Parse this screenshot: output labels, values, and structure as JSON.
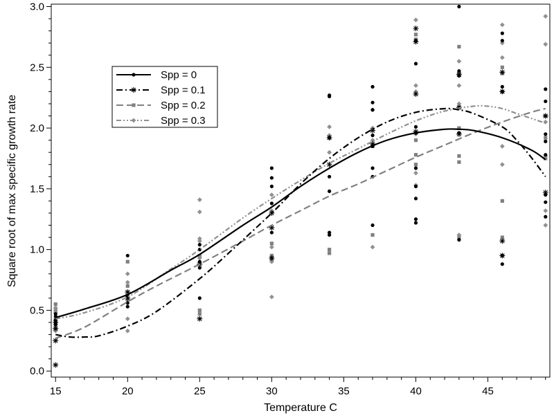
{
  "chart_data": {
    "type": "scatter",
    "title": "",
    "xlabel": "Temperature C",
    "ylabel": "Square root of max specific growth rate",
    "xlim": [
      14.7,
      49.3
    ],
    "ylim": [
      -0.05,
      3.02
    ],
    "xticks": [
      15,
      20,
      25,
      30,
      35,
      40,
      45
    ],
    "yticks": [
      0.0,
      0.5,
      1.0,
      1.5,
      2.0,
      2.5,
      3.0
    ],
    "ytick_labels": [
      "0.0",
      "0.5",
      "1.0",
      "1.5",
      "2.0",
      "2.5",
      "3.0"
    ],
    "grid": false,
    "legend_position": "upper-left",
    "series": [
      {
        "name": "Spp = 0",
        "color": "#000000",
        "marker": "dot",
        "line_style": "solid",
        "points": [
          [
            15,
            0.4
          ],
          [
            15,
            0.42
          ],
          [
            15,
            0.45
          ],
          [
            15,
            0.47
          ],
          [
            15,
            0.38
          ],
          [
            20,
            0.95
          ],
          [
            20,
            0.62
          ],
          [
            20,
            0.56
          ],
          [
            20,
            0.53
          ],
          [
            25,
            1.04
          ],
          [
            25,
            1.0
          ],
          [
            25,
            0.9
          ],
          [
            25,
            0.85
          ],
          [
            25,
            0.6
          ],
          [
            30,
            1.67
          ],
          [
            30,
            1.59
          ],
          [
            30,
            1.52
          ],
          [
            30,
            1.38
          ],
          [
            30,
            1.14
          ],
          [
            34,
            2.27
          ],
          [
            34,
            2.26
          ],
          [
            34,
            1.92
          ],
          [
            34,
            1.6
          ],
          [
            34,
            1.48
          ],
          [
            34,
            1.14
          ],
          [
            34,
            1.12
          ],
          [
            37,
            2.34
          ],
          [
            37,
            2.21
          ],
          [
            37,
            2.15
          ],
          [
            37,
            1.94
          ],
          [
            37,
            1.85
          ],
          [
            37,
            1.67
          ],
          [
            37,
            1.6
          ],
          [
            37,
            1.2
          ],
          [
            40,
            2.72
          ],
          [
            40,
            2.53
          ],
          [
            40,
            2.01
          ],
          [
            40,
            1.96
          ],
          [
            40,
            1.67
          ],
          [
            40,
            1.52
          ],
          [
            40,
            1.42
          ],
          [
            40,
            1.25
          ],
          [
            40,
            1.22
          ],
          [
            43,
            3.0
          ],
          [
            43,
            2.47
          ],
          [
            43,
            2.43
          ],
          [
            43,
            2.17
          ],
          [
            43,
            1.96
          ],
          [
            43,
            1.08
          ],
          [
            46,
            2.78
          ],
          [
            46,
            2.72
          ],
          [
            46,
            2.34
          ],
          [
            46,
            2.3
          ],
          [
            46,
            0.95
          ],
          [
            46,
            0.88
          ],
          [
            49,
            2.32
          ],
          [
            49,
            2.22
          ],
          [
            49,
            1.95
          ],
          [
            49,
            1.89
          ],
          [
            49,
            1.78
          ],
          [
            49,
            1.45
          ],
          [
            49,
            1.39
          ],
          [
            49,
            1.27
          ]
        ],
        "curve": [
          [
            15,
            0.44
          ],
          [
            17,
            0.51
          ],
          [
            20,
            0.63
          ],
          [
            23,
            0.83
          ],
          [
            25,
            0.96
          ],
          [
            28,
            1.2
          ],
          [
            30,
            1.35
          ],
          [
            32,
            1.52
          ],
          [
            34,
            1.67
          ],
          [
            36,
            1.8
          ],
          [
            38,
            1.9
          ],
          [
            40,
            1.96
          ],
          [
            42,
            1.99
          ],
          [
            43,
            1.99
          ],
          [
            44,
            1.98
          ],
          [
            46,
            1.92
          ],
          [
            48,
            1.82
          ],
          [
            49,
            1.74
          ]
        ]
      },
      {
        "name": "Spp = 0.1",
        "color": "#000000",
        "marker": "asterisk",
        "line_style": "dash-dot",
        "points": [
          [
            15,
            0.05
          ],
          [
            15,
            0.25
          ],
          [
            15,
            0.35
          ],
          [
            15,
            0.4
          ],
          [
            20,
            0.65
          ],
          [
            20,
            0.6
          ],
          [
            25,
            0.43
          ],
          [
            25,
            0.88
          ],
          [
            30,
            1.18
          ],
          [
            30,
            0.93
          ],
          [
            30,
            1.3
          ],
          [
            34,
            1.92
          ],
          [
            34,
            1.7
          ],
          [
            37,
            1.98
          ],
          [
            37,
            1.87
          ],
          [
            40,
            2.82
          ],
          [
            40,
            2.71
          ],
          [
            40,
            2.28
          ],
          [
            40,
            1.97
          ],
          [
            43,
            2.44
          ],
          [
            43,
            2.17
          ],
          [
            43,
            1.95
          ],
          [
            46,
            2.46
          ],
          [
            46,
            2.3
          ],
          [
            46,
            1.07
          ],
          [
            46,
            0.95
          ],
          [
            49,
            2.1
          ],
          [
            49,
            1.47
          ]
        ],
        "curve": [
          [
            15,
            0.3
          ],
          [
            16,
            0.28
          ],
          [
            17,
            0.28
          ],
          [
            18,
            0.29
          ],
          [
            20,
            0.37
          ],
          [
            22,
            0.49
          ],
          [
            25,
            0.76
          ],
          [
            27,
            0.97
          ],
          [
            30,
            1.3
          ],
          [
            32,
            1.54
          ],
          [
            34,
            1.75
          ],
          [
            36,
            1.92
          ],
          [
            38,
            2.05
          ],
          [
            40,
            2.13
          ],
          [
            42,
            2.16
          ],
          [
            43,
            2.15
          ],
          [
            44,
            2.12
          ],
          [
            46,
            2.01
          ],
          [
            47,
            1.9
          ],
          [
            48,
            1.76
          ],
          [
            49,
            1.6
          ]
        ]
      },
      {
        "name": "Spp = 0.2",
        "color": "#808080",
        "marker": "square",
        "line_style": "dashed",
        "points": [
          [
            15,
            0.55
          ],
          [
            15,
            0.5
          ],
          [
            15,
            0.35
          ],
          [
            20,
            0.9
          ],
          [
            20,
            0.7
          ],
          [
            20,
            0.6
          ],
          [
            25,
            0.95
          ],
          [
            25,
            0.5
          ],
          [
            25,
            0.47
          ],
          [
            30,
            1.05
          ],
          [
            30,
            0.95
          ],
          [
            30,
            0.92
          ],
          [
            34,
            1.0
          ],
          [
            34,
            0.97
          ],
          [
            37,
            1.12
          ],
          [
            37,
            1.85
          ],
          [
            40,
            2.77
          ],
          [
            40,
            2.73
          ],
          [
            40,
            1.9
          ],
          [
            40,
            1.78
          ],
          [
            40,
            1.7
          ],
          [
            43,
            2.67
          ],
          [
            43,
            2.45
          ],
          [
            43,
            2.0
          ],
          [
            43,
            1.77
          ],
          [
            43,
            1.72
          ],
          [
            43,
            1.1
          ],
          [
            46,
            2.5
          ],
          [
            46,
            2.45
          ],
          [
            46,
            1.4
          ],
          [
            46,
            1.1
          ],
          [
            49,
            2.1
          ],
          [
            49,
            1.92
          ],
          [
            49,
            1.75
          ]
        ],
        "curve": [
          [
            15,
            0.27
          ],
          [
            17,
            0.36
          ],
          [
            20,
            0.57
          ],
          [
            22,
            0.7
          ],
          [
            25,
            0.88
          ],
          [
            28,
            1.07
          ],
          [
            30,
            1.2
          ],
          [
            32,
            1.32
          ],
          [
            34,
            1.44
          ],
          [
            36,
            1.54
          ],
          [
            38,
            1.65
          ],
          [
            40,
            1.76
          ],
          [
            42,
            1.86
          ],
          [
            44,
            1.96
          ],
          [
            46,
            2.05
          ],
          [
            48,
            2.13
          ],
          [
            49,
            2.16
          ]
        ]
      },
      {
        "name": "Spp = 0.3",
        "color": "#909090",
        "marker": "diamond",
        "line_style": "dash-dot-dot",
        "points": [
          [
            15,
            0.52
          ],
          [
            15,
            0.48
          ],
          [
            15,
            0.43
          ],
          [
            15,
            0.33
          ],
          [
            20,
            0.8
          ],
          [
            20,
            0.73
          ],
          [
            20,
            0.58
          ],
          [
            20,
            0.43
          ],
          [
            20,
            0.33
          ],
          [
            25,
            1.41
          ],
          [
            25,
            1.31
          ],
          [
            25,
            1.09
          ],
          [
            25,
            1.07
          ],
          [
            25,
            0.93
          ],
          [
            30,
            1.45
          ],
          [
            30,
            1.32
          ],
          [
            30,
            1.02
          ],
          [
            30,
            0.9
          ],
          [
            30,
            0.61
          ],
          [
            34,
            2.01
          ],
          [
            34,
            1.94
          ],
          [
            34,
            1.8
          ],
          [
            37,
            2.15
          ],
          [
            37,
            2.0
          ],
          [
            37,
            1.9
          ],
          [
            37,
            1.02
          ],
          [
            40,
            2.89
          ],
          [
            40,
            2.35
          ],
          [
            40,
            2.3
          ],
          [
            40,
            1.95
          ],
          [
            40,
            1.63
          ],
          [
            40,
            1.53
          ],
          [
            43,
            2.55
          ],
          [
            43,
            2.45
          ],
          [
            43,
            2.35
          ],
          [
            43,
            2.2
          ],
          [
            43,
            1.12
          ],
          [
            46,
            2.85
          ],
          [
            46,
            2.7
          ],
          [
            46,
            2.58
          ],
          [
            46,
            1.85
          ],
          [
            46,
            1.7
          ],
          [
            49,
            2.92
          ],
          [
            49,
            2.69
          ],
          [
            49,
            2.05
          ],
          [
            49,
            1.77
          ],
          [
            49,
            1.32
          ],
          [
            49,
            1.2
          ]
        ],
        "curve": [
          [
            15,
            0.43
          ],
          [
            17,
            0.48
          ],
          [
            20,
            0.61
          ],
          [
            23,
            0.84
          ],
          [
            25,
            1.0
          ],
          [
            28,
            1.26
          ],
          [
            30,
            1.42
          ],
          [
            32,
            1.57
          ],
          [
            34,
            1.71
          ],
          [
            36,
            1.83
          ],
          [
            38,
            1.95
          ],
          [
            40,
            2.06
          ],
          [
            42,
            2.14
          ],
          [
            44,
            2.18
          ],
          [
            45,
            2.18
          ],
          [
            46,
            2.16
          ],
          [
            47,
            2.12
          ],
          [
            48,
            2.08
          ],
          [
            49,
            2.04
          ]
        ]
      }
    ]
  }
}
